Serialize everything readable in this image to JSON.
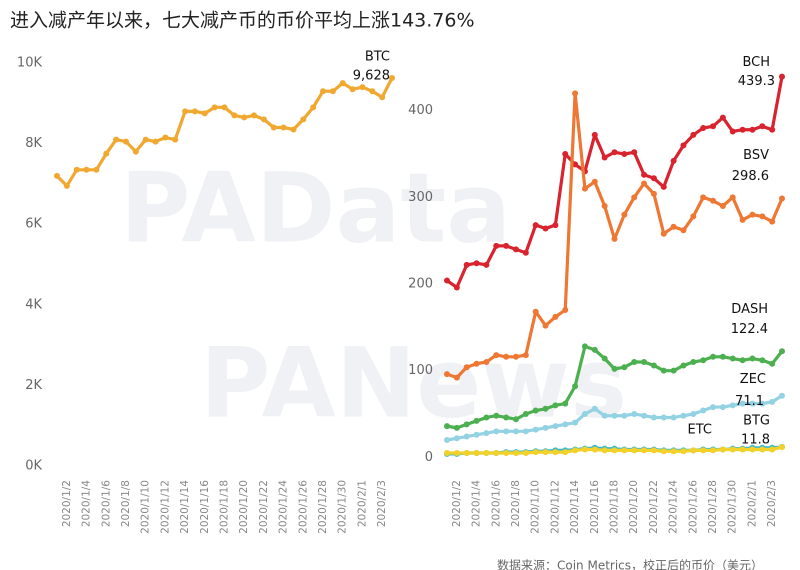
{
  "title": "进入减产年以来，七大减产币的币价平均上涨143.76%",
  "source": "数据来源：Coin Metrics，校正后的币价（美元）",
  "watermarks": [
    "PAData",
    "PANews"
  ],
  "chart_data": [
    {
      "type": "line",
      "categories": [
        null,
        "2020/1/2",
        null,
        "2020/1/4",
        null,
        "2020/1/6",
        null,
        "2020/1/8",
        null,
        "2020/1/10",
        null,
        "2020/1/12",
        null,
        "2020/1/14",
        null,
        "2020/1/16",
        null,
        "2020/1/18",
        null,
        "2020/1/20",
        null,
        "2020/1/22",
        null,
        "2020/1/24",
        null,
        "2020/1/26",
        null,
        "2020/1/28",
        null,
        "2020/1/30",
        null,
        "2020/2/1",
        null,
        "2020/2/3",
        null
      ],
      "ylim": [
        0,
        10000
      ],
      "yticks": [
        {
          "value": 0,
          "label": "0K"
        },
        {
          "value": 2000,
          "label": "2K"
        },
        {
          "value": 4000,
          "label": "4K"
        },
        {
          "value": 6000,
          "label": "6K"
        },
        {
          "value": 8000,
          "label": "8K"
        },
        {
          "value": 10000,
          "label": "10K"
        }
      ],
      "grid": false,
      "series": [
        {
          "name": "BTC",
          "color": "#f0a830",
          "values": [
            7200,
            6950,
            7350,
            7350,
            7350,
            7750,
            8100,
            8050,
            7800,
            8100,
            8050,
            8150,
            8100,
            8800,
            8800,
            8750,
            8900,
            8900,
            8700,
            8650,
            8700,
            8600,
            8400,
            8400,
            8350,
            8600,
            8900,
            9300,
            9300,
            9500,
            9350,
            9400,
            9300,
            9150,
            9628
          ],
          "value_labels": [
            null,
            null,
            null,
            null,
            null,
            null,
            null,
            null,
            null,
            null,
            null,
            null,
            null,
            null,
            null,
            null,
            null,
            null,
            null,
            null,
            null,
            null,
            null,
            null,
            null,
            null,
            null,
            null,
            null,
            null,
            null,
            null,
            null,
            null,
            "9,628"
          ]
        }
      ]
    },
    {
      "type": "line",
      "categories": [
        null,
        "2020/1/2",
        null,
        "2020/1/4",
        null,
        "2020/1/6",
        null,
        "2020/1/8",
        null,
        "2020/1/10",
        null,
        "2020/1/12",
        null,
        "2020/1/14",
        null,
        "2020/1/16",
        null,
        "2020/1/18",
        null,
        "2020/1/20",
        null,
        "2020/1/22",
        null,
        "2020/1/24",
        null,
        "2020/1/26",
        null,
        "2020/1/28",
        null,
        "2020/1/30",
        null,
        "2020/2/1",
        null,
        "2020/2/3",
        null
      ],
      "ylim": [
        -10,
        455
      ],
      "yticks": [
        0,
        100,
        200,
        300,
        400
      ],
      "grid": false,
      "series": [
        {
          "name": "BCH",
          "color": "#d9232e",
          "values": [
            204,
            196,
            222,
            224,
            222,
            244,
            244,
            240,
            236,
            268,
            264,
            268,
            350,
            338,
            330,
            372,
            346,
            352,
            350,
            352,
            326,
            322,
            312,
            342,
            360,
            372,
            380,
            382,
            392,
            376,
            378,
            378,
            382,
            378,
            439.3
          ]
        },
        {
          "name": "BSV",
          "color": "#ee7733",
          "values": [
            96,
            92,
            104,
            108,
            110,
            118,
            116,
            116,
            118,
            168,
            152,
            162,
            170,
            420,
            310,
            318,
            290,
            252,
            280,
            300,
            316,
            304,
            258,
            266,
            262,
            278,
            300,
            296,
            290,
            300,
            274,
            280,
            278,
            272,
            298.6
          ]
        },
        {
          "name": "DASH",
          "color": "#4caf50",
          "values": [
            36,
            34,
            38,
            42,
            46,
            48,
            46,
            44,
            50,
            54,
            56,
            60,
            62,
            82,
            128,
            124,
            114,
            102,
            104,
            110,
            110,
            106,
            100,
            100,
            106,
            110,
            112,
            116,
            116,
            114,
            112,
            114,
            112,
            108,
            122.4
          ]
        },
        {
          "name": "ZEC",
          "color": "#93d2e3",
          "values": [
            20,
            22,
            24,
            26,
            28,
            30,
            30,
            30,
            30,
            32,
            34,
            36,
            38,
            40,
            50,
            56,
            48,
            48,
            48,
            50,
            48,
            46,
            46,
            46,
            48,
            50,
            54,
            58,
            58,
            60,
            62,
            62,
            62,
            64,
            71.1
          ]
        },
        {
          "name": "ETC",
          "color": "#3fb8c9",
          "values": [
            4,
            4,
            5,
            5,
            5,
            5,
            6,
            6,
            6,
            7,
            7,
            8,
            8,
            9,
            10,
            11,
            10,
            10,
            9,
            9,
            9,
            9,
            8,
            8,
            8,
            8,
            9,
            9,
            9,
            10,
            10,
            11,
            11,
            11,
            12
          ]
        },
        {
          "name": "BTG",
          "color": "#f2d12b",
          "values": [
            5,
            5,
            5,
            5,
            5,
            5,
            5,
            5,
            5,
            6,
            6,
            6,
            6,
            8,
            9,
            9,
            8,
            8,
            8,
            8,
            8,
            8,
            7,
            7,
            7,
            8,
            8,
            8,
            9,
            9,
            9,
            9,
            9,
            9,
            11.8
          ]
        }
      ]
    }
  ]
}
